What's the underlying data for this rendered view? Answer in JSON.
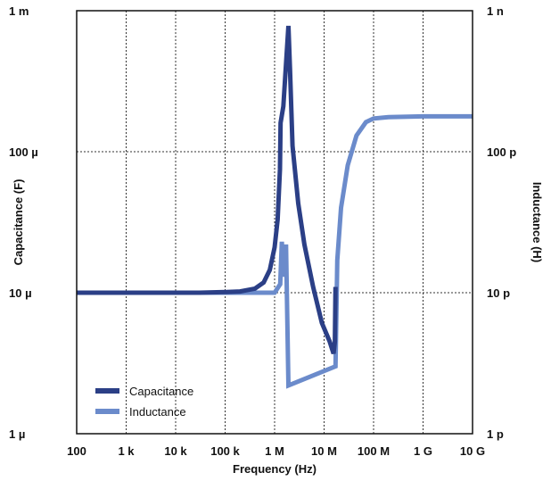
{
  "chart_data": {
    "type": "line",
    "x_scale": "log",
    "y_scale": "log",
    "grid": true,
    "legend_position": "bottom-left",
    "xlabel": "Frequency (Hz)",
    "ylabel_left": "Capacitance (F)",
    "ylabel_right": "Inductance (H)",
    "xlim": [
      100,
      10000000000
    ],
    "ylim_left": [
      1e-06,
      0.001
    ],
    "ylim_right": [
      1e-12,
      1e-09
    ],
    "x_ticks": [
      {
        "value": 100,
        "label": "100"
      },
      {
        "value": 1000,
        "label": "1 k"
      },
      {
        "value": 10000,
        "label": "10 k"
      },
      {
        "value": 100000,
        "label": "100 k"
      },
      {
        "value": 1000000,
        "label": "1 M"
      },
      {
        "value": 10000000,
        "label": "10 M"
      },
      {
        "value": 100000000,
        "label": "100 M"
      },
      {
        "value": 1000000000,
        "label": "1 G"
      },
      {
        "value": 10000000000,
        "label": "10 G"
      }
    ],
    "y_ticks_left": [
      {
        "value": 1e-06,
        "label": "1 µ"
      },
      {
        "value": 1e-05,
        "label": "10 µ"
      },
      {
        "value": 0.0001,
        "label": "100 µ"
      },
      {
        "value": 0.001,
        "label": "1 m"
      }
    ],
    "y_ticks_right": [
      {
        "value": 1e-12,
        "label": "1 p"
      },
      {
        "value": 1e-11,
        "label": "10 p"
      },
      {
        "value": 1e-10,
        "label": "100 p"
      },
      {
        "value": 1e-09,
        "label": "1 n"
      }
    ],
    "series": [
      {
        "name": "Capacitance",
        "color": "#2b3f86",
        "axis": "left",
        "points": [
          [
            100,
            1e-05
          ],
          [
            1000,
            1e-05
          ],
          [
            10000,
            1e-05
          ],
          [
            30000,
            1e-05
          ],
          [
            100000,
            1.01e-05
          ],
          [
            200000,
            1.02e-05
          ],
          [
            400000,
            1.07e-05
          ],
          [
            600000,
            1.18e-05
          ],
          [
            800000,
            1.45e-05
          ],
          [
            1000000,
            2.1e-05
          ],
          [
            1150000,
            3.3e-05
          ],
          [
            1280000,
            7.5e-05
          ],
          [
            1320000,
            0.00016
          ],
          [
            1500000,
            0.00021
          ],
          [
            1700000,
            0.00042
          ],
          [
            1900000,
            0.00078
          ],
          [
            2050000,
            0.00038
          ],
          [
            2300000,
            0.00011
          ],
          [
            3000000,
            4.3e-05
          ],
          [
            4000000,
            2.2e-05
          ],
          [
            6000000,
            1.1e-05
          ],
          [
            9000000,
            6.1e-06
          ],
          [
            13000000,
            4.5e-06
          ],
          [
            15500000,
            3.7e-06
          ],
          [
            16500000,
            4.5e-06
          ],
          [
            17000000,
            1.1e-05
          ]
        ]
      },
      {
        "name": "Inductance",
        "color": "#6b8bcb",
        "axis": "right",
        "points": [
          [
            100,
            1e-11
          ],
          [
            1000,
            1e-11
          ],
          [
            10000,
            1e-11
          ],
          [
            100000,
            1e-11
          ],
          [
            500000,
            1e-11
          ],
          [
            1000000,
            1e-11
          ],
          [
            1300000,
            1.15e-11
          ],
          [
            1400000,
            2.3e-11
          ],
          [
            1500000,
            1.3e-11
          ],
          [
            1700000,
            2.2e-11
          ],
          [
            1900000,
            2.2e-12
          ],
          [
            17000000,
            3e-12
          ],
          [
            18500000,
            1.7e-11
          ],
          [
            22000000,
            4e-11
          ],
          [
            30000000,
            8e-11
          ],
          [
            45000000,
            1.3e-10
          ],
          [
            70000000,
            1.62e-10
          ],
          [
            100000000,
            1.72e-10
          ],
          [
            200000000,
            1.76e-10
          ],
          [
            1000000000,
            1.78e-10
          ],
          [
            10000000000,
            1.78e-10
          ]
        ]
      }
    ]
  }
}
